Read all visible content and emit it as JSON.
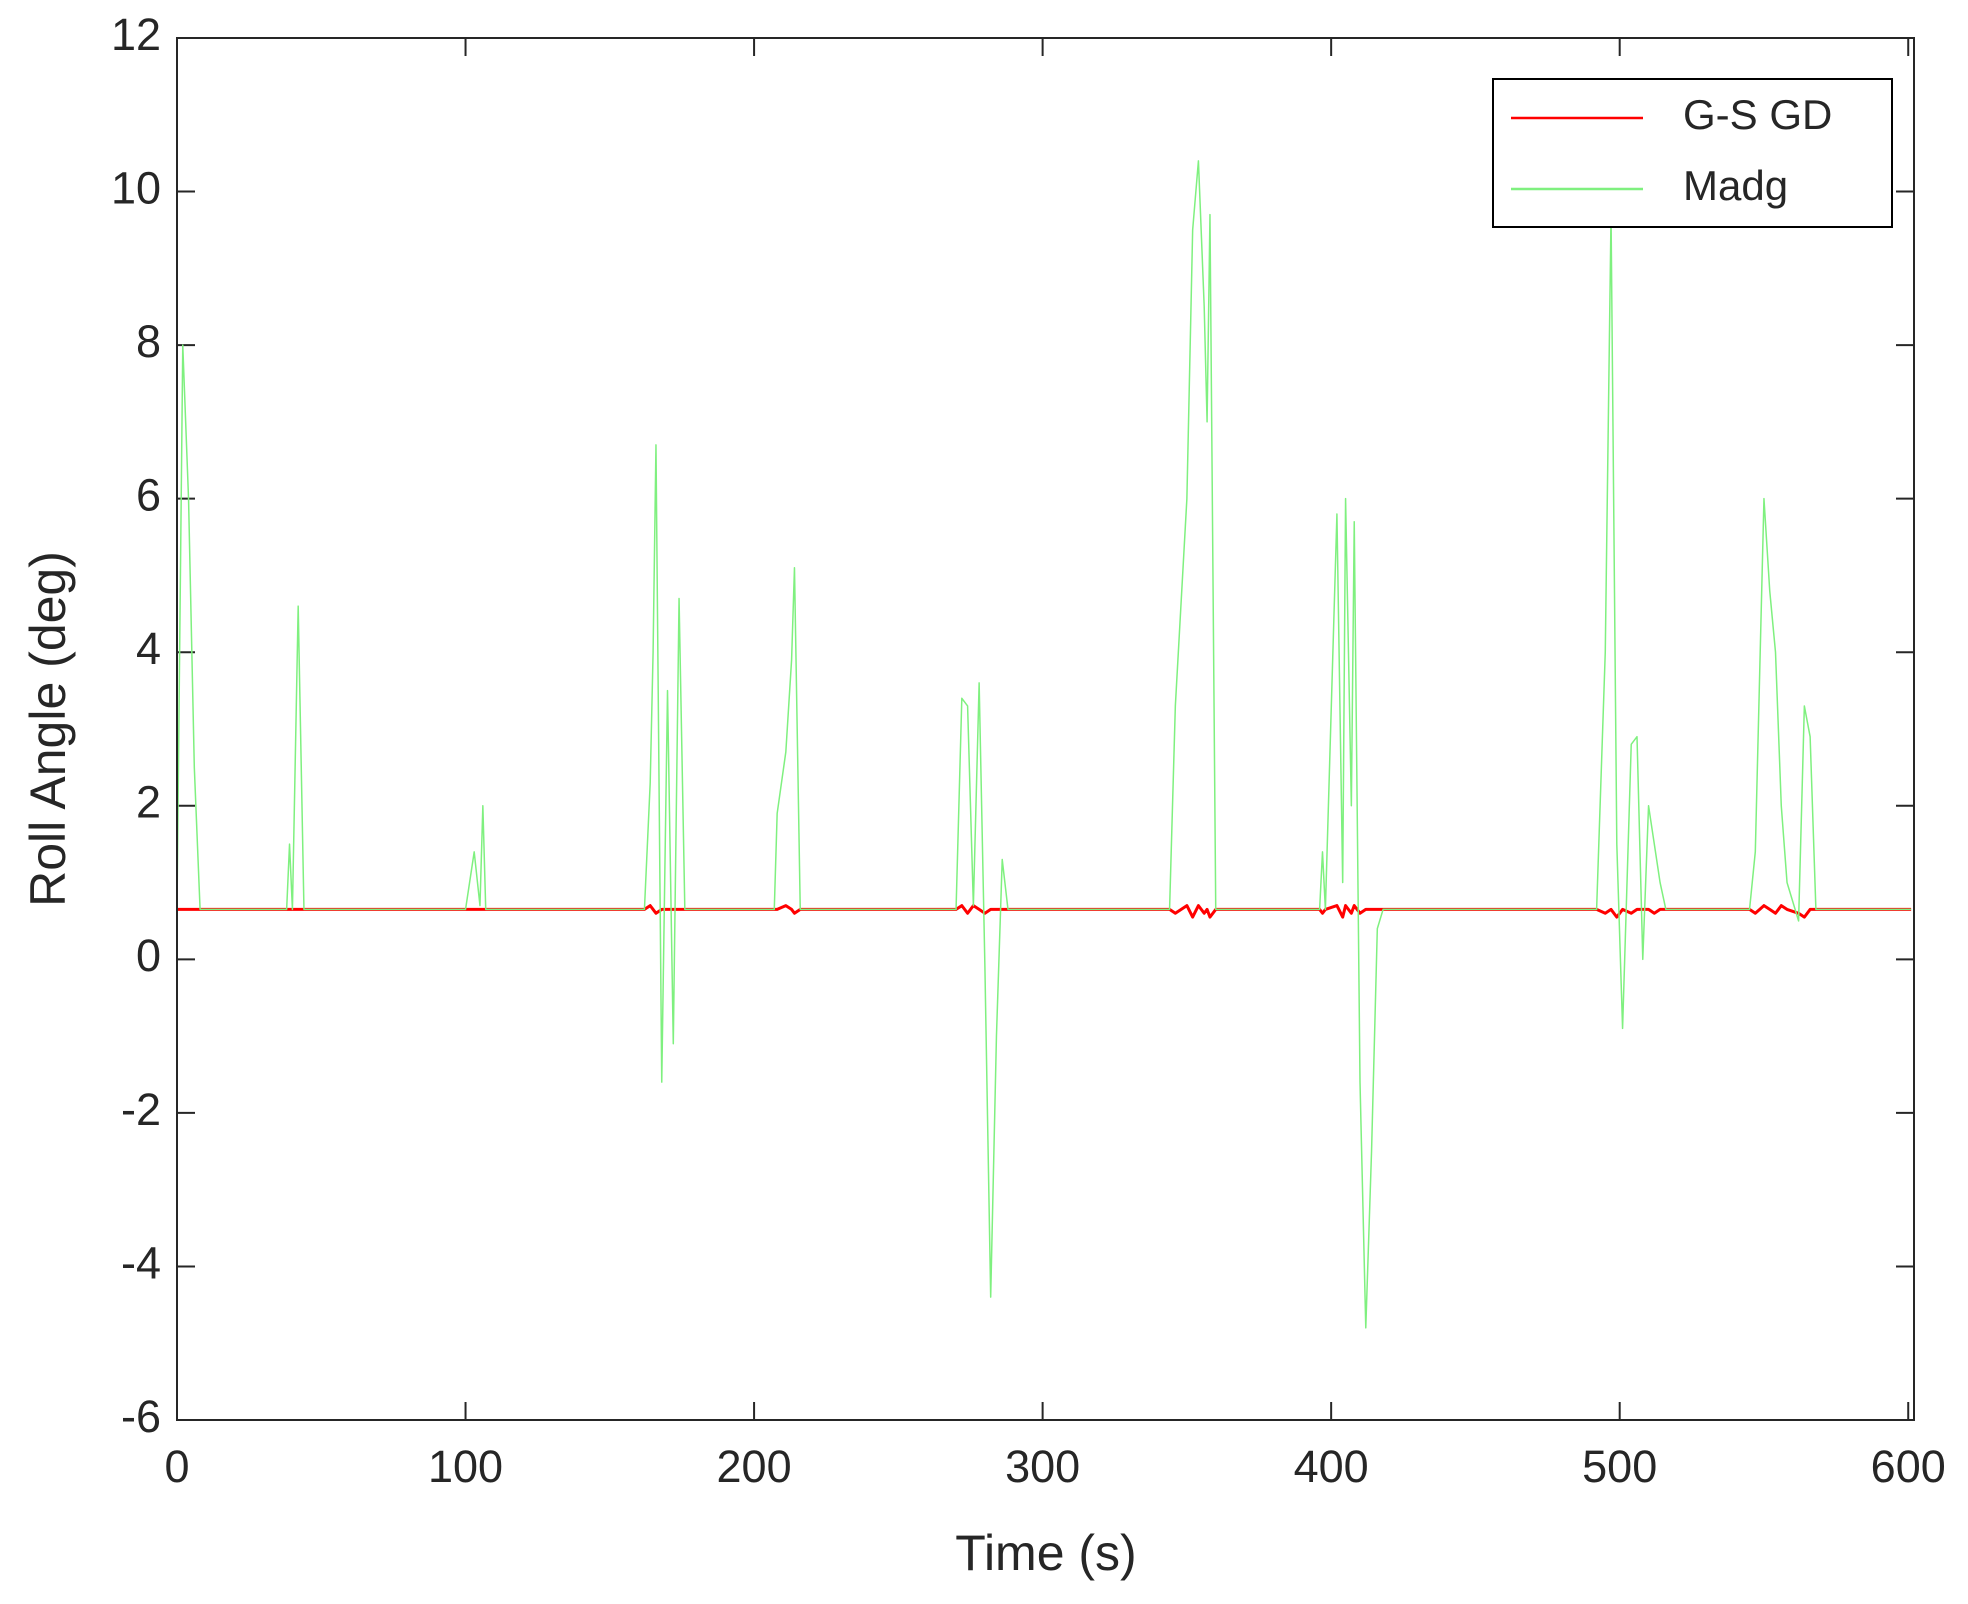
{
  "chart_data": {
    "type": "line",
    "xlabel": "Time (s)",
    "ylabel": "Roll Angle (deg)",
    "xlim": [
      0,
      602
    ],
    "ylim": [
      -6,
      12
    ],
    "xticks": [
      0,
      100,
      200,
      300,
      400,
      500,
      600
    ],
    "yticks": [
      -6,
      -4,
      -2,
      0,
      2,
      4,
      6,
      8,
      10,
      12
    ],
    "grid": false,
    "legend": "upper right",
    "x": [
      0,
      2,
      4,
      6,
      8,
      38,
      39,
      40,
      42,
      44,
      100,
      103,
      105,
      106,
      107,
      162,
      164,
      165,
      166,
      168,
      170,
      172,
      174,
      176,
      207,
      208,
      211,
      213,
      214,
      216,
      270,
      272,
      274,
      276,
      278,
      280,
      282,
      284,
      286,
      288,
      344,
      346,
      350,
      352,
      354,
      356,
      357,
      358,
      360,
      396,
      397,
      398,
      402,
      404,
      405,
      407,
      408,
      410,
      412,
      414,
      416,
      418,
      492,
      495,
      497,
      499,
      501,
      504,
      506,
      508,
      510,
      512,
      514,
      516,
      545,
      547,
      550,
      552,
      554,
      556,
      558,
      562,
      564,
      566,
      568,
      601
    ],
    "series": [
      {
        "name": "G-S GD",
        "color": "#ff0000",
        "width": 3,
        "values": [
          0.65,
          0.65,
          0.65,
          0.65,
          0.65,
          0.65,
          0.65,
          0.65,
          0.65,
          0.65,
          0.65,
          0.65,
          0.65,
          0.65,
          0.65,
          0.65,
          0.7,
          0.65,
          0.6,
          0.65,
          0.65,
          0.65,
          0.65,
          0.65,
          0.65,
          0.65,
          0.7,
          0.65,
          0.6,
          0.65,
          0.65,
          0.7,
          0.6,
          0.7,
          0.65,
          0.6,
          0.65,
          0.65,
          0.65,
          0.65,
          0.65,
          0.6,
          0.7,
          0.55,
          0.7,
          0.6,
          0.65,
          0.55,
          0.65,
          0.65,
          0.6,
          0.65,
          0.7,
          0.55,
          0.7,
          0.6,
          0.7,
          0.6,
          0.65,
          0.65,
          0.65,
          0.65,
          0.65,
          0.6,
          0.65,
          0.55,
          0.65,
          0.6,
          0.65,
          0.65,
          0.65,
          0.6,
          0.65,
          0.65,
          0.65,
          0.6,
          0.7,
          0.65,
          0.6,
          0.7,
          0.65,
          0.6,
          0.55,
          0.65,
          0.65,
          0.65
        ]
      },
      {
        "name": "Madg",
        "color": "#7ff07f",
        "width": 1.5,
        "values": [
          0.65,
          8,
          6,
          2.5,
          0.65,
          0.65,
          1.5,
          0.65,
          4.6,
          0.65,
          0.65,
          1.4,
          0.7,
          2.0,
          0.65,
          0.65,
          2.3,
          4,
          6.7,
          -1.6,
          3.5,
          -1.1,
          4.7,
          0.65,
          0.65,
          1.9,
          2.7,
          3.9,
          5.1,
          0.65,
          0.65,
          3.4,
          3.3,
          0.7,
          3.6,
          -0.1,
          -4.4,
          -1.0,
          1.3,
          0.65,
          0.65,
          3.3,
          6,
          9.5,
          10.4,
          8.5,
          7,
          9.7,
          0.65,
          0.65,
          1.4,
          0.65,
          5.8,
          1,
          6,
          2,
          5.7,
          -1.6,
          -4.8,
          -2.5,
          0.4,
          0.65,
          0.65,
          4,
          9.7,
          1.5,
          -0.9,
          2.8,
          2.9,
          0,
          2,
          1.5,
          1.0,
          0.65,
          0.65,
          1.4,
          6.0,
          4.8,
          4,
          2,
          1,
          0.5,
          3.3,
          2.9,
          0.65,
          0.65
        ]
      }
    ]
  }
}
